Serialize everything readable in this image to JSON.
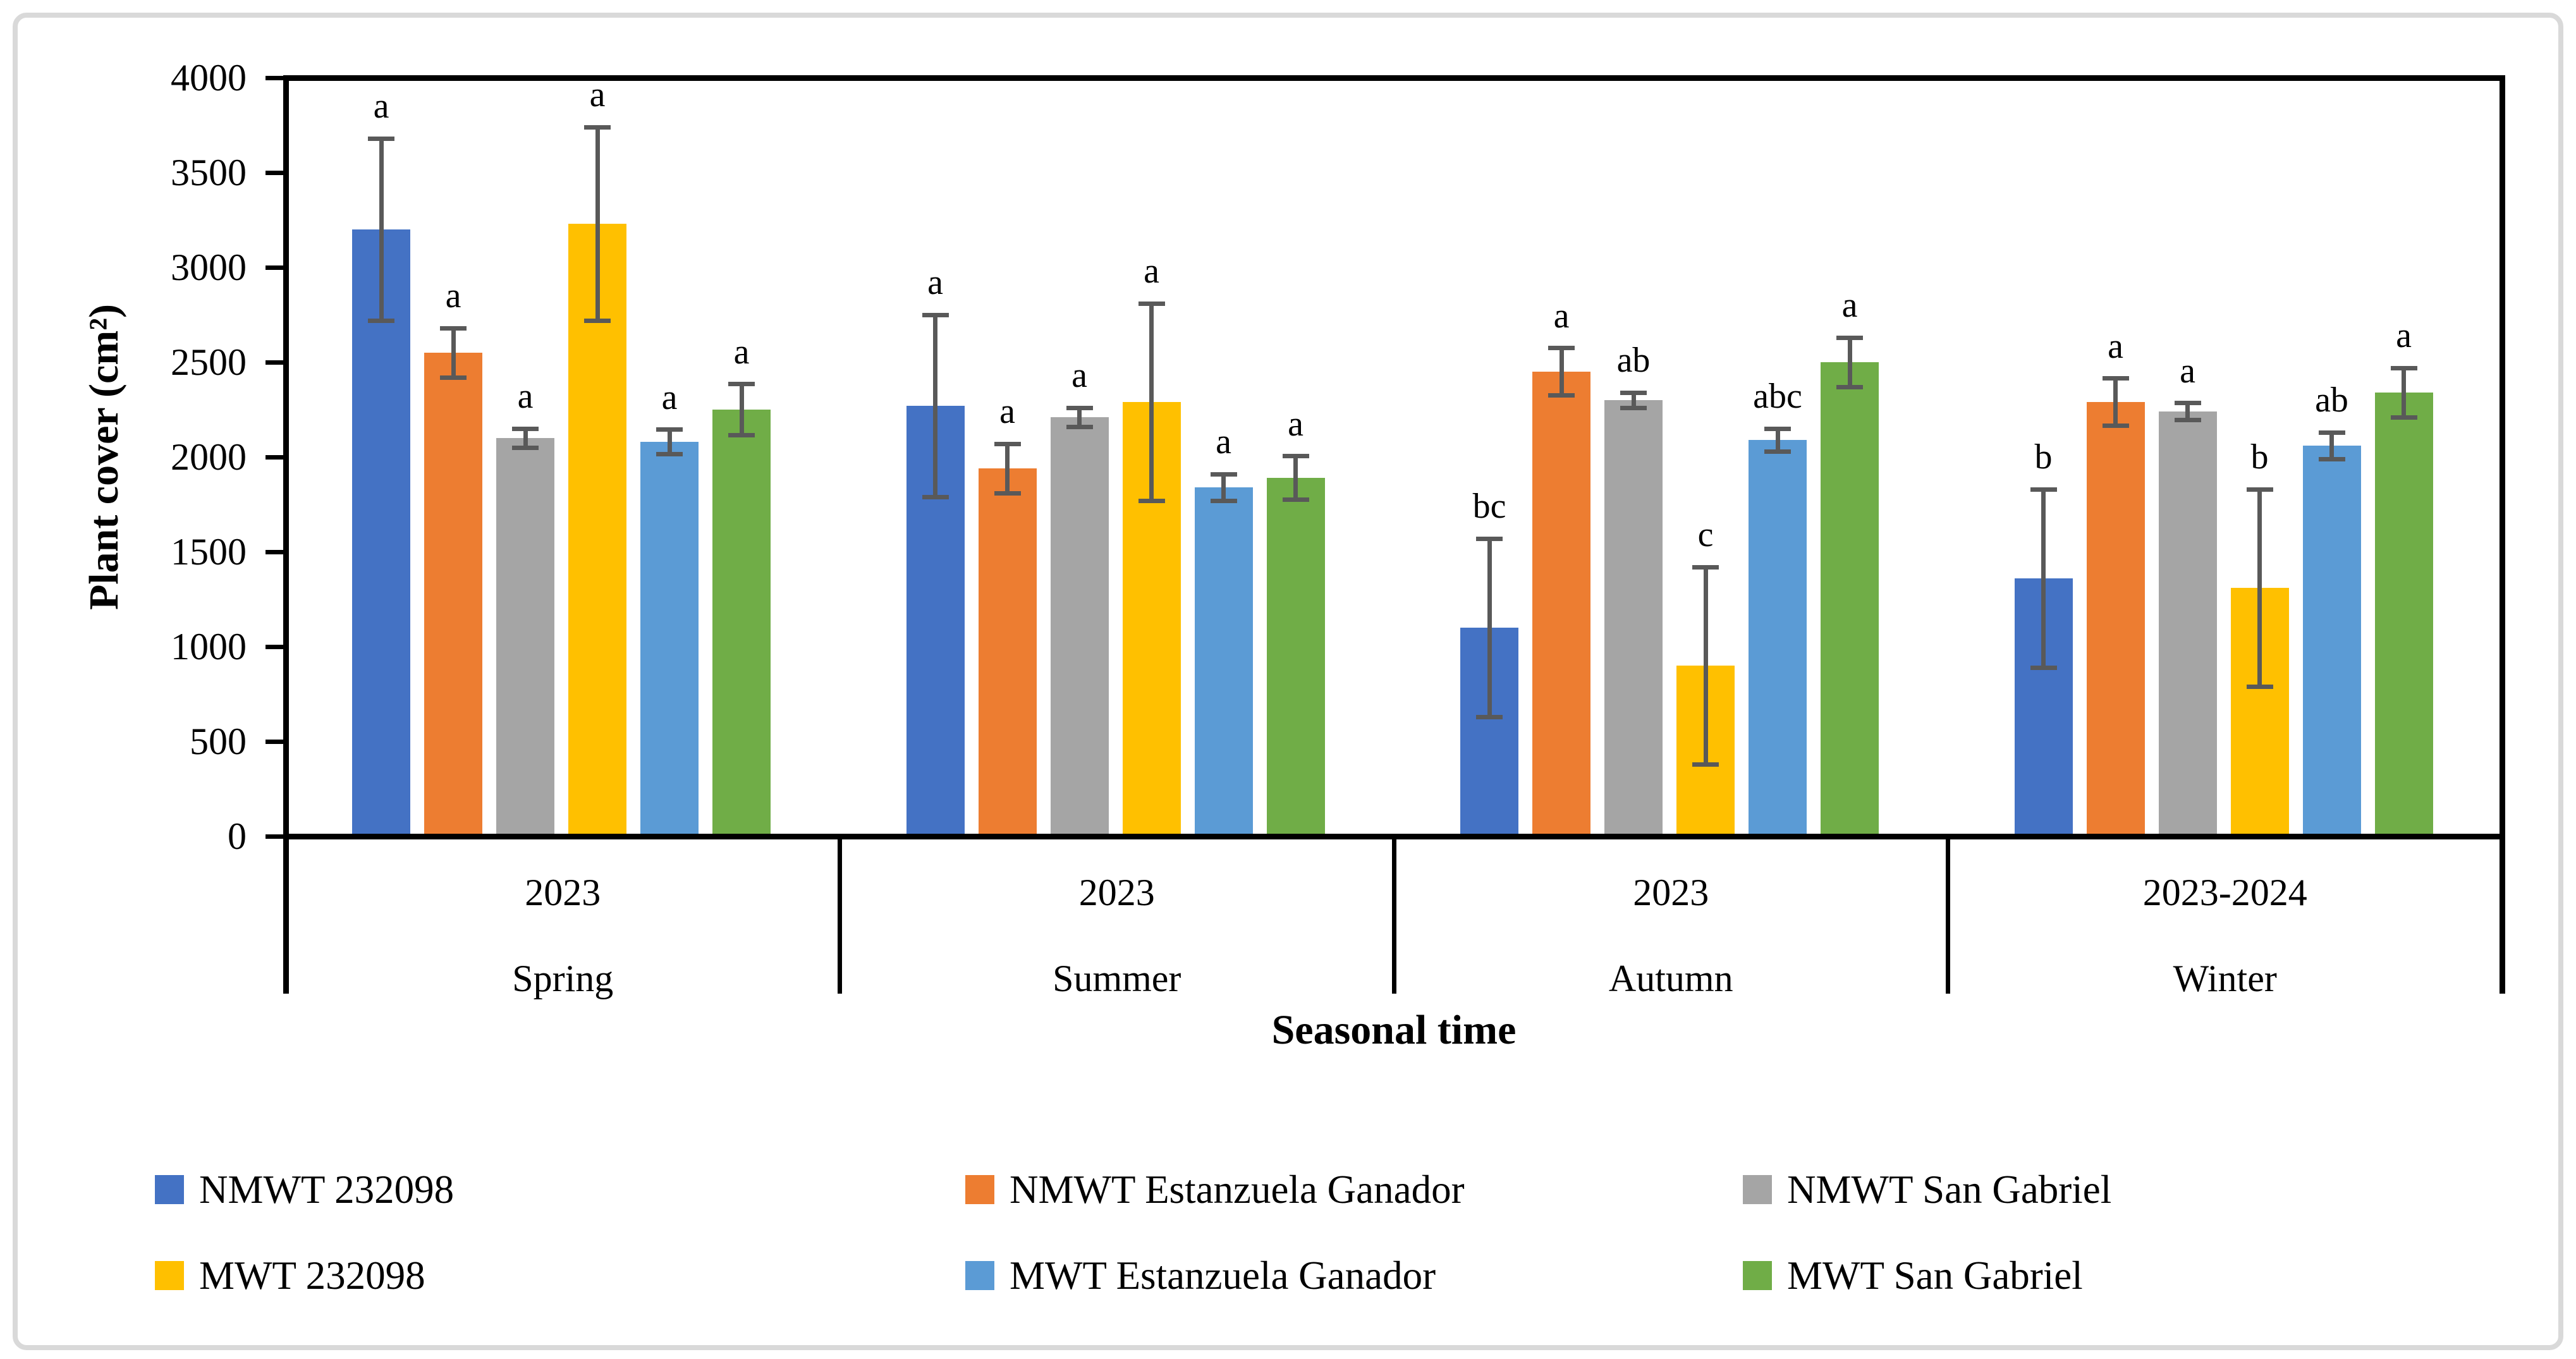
{
  "figure": {
    "background": "#FFFFFF",
    "border_color": "#D9D9D9"
  },
  "chart_data": {
    "type": "bar",
    "title": "",
    "xlabel": "Seasonal time",
    "ylabel": "Plant cover (cm²)",
    "ylim": [
      0,
      4000
    ],
    "yticks": [
      0,
      500,
      1000,
      1500,
      2000,
      2500,
      3000,
      3500,
      4000
    ],
    "grid": false,
    "legend_position": "bottom",
    "axis_color": "#000000",
    "error_bar_color": "#595959",
    "groups": [
      {
        "year": "2023",
        "season": "Spring"
      },
      {
        "year": "2023",
        "season": "Summer"
      },
      {
        "year": "2023",
        "season": "Autumn"
      },
      {
        "year": "2023-2024",
        "season": "Winter"
      }
    ],
    "series": [
      {
        "name": "NMWT 232098",
        "color": "#4472C4",
        "values": [
          3200,
          2270,
          1100,
          1360
        ],
        "errors": [
          480,
          480,
          470,
          470
        ],
        "letters": [
          "a",
          "a",
          "bc",
          "b"
        ]
      },
      {
        "name": "NMWT Estanzuela Ganador",
        "color": "#ED7D31",
        "values": [
          2550,
          1940,
          2450,
          2290
        ],
        "errors": [
          130,
          130,
          125,
          125
        ],
        "letters": [
          "a",
          "a",
          "a",
          "a"
        ]
      },
      {
        "name": "NMWT San Gabriel",
        "color": "#A5A5A5",
        "values": [
          2100,
          2210,
          2300,
          2240
        ],
        "errors": [
          50,
          50,
          40,
          45
        ],
        "letters": [
          "a",
          "a",
          "ab",
          "a"
        ]
      },
      {
        "name": "MWT 232098",
        "color": "#FFC000",
        "values": [
          3230,
          2290,
          900,
          1310
        ],
        "errors": [
          510,
          520,
          520,
          520
        ],
        "letters": [
          "a",
          "a",
          "c",
          "b"
        ]
      },
      {
        "name": "MWT Estanzuela Ganador",
        "color": "#5B9BD5",
        "values": [
          2080,
          1840,
          2090,
          2060
        ],
        "errors": [
          65,
          70,
          60,
          70
        ],
        "letters": [
          "a",
          "a",
          "abc",
          "ab"
        ]
      },
      {
        "name": "MWT San Gabriel",
        "color": "#70AD47",
        "values": [
          2250,
          1890,
          2500,
          2340
        ],
        "errors": [
          135,
          115,
          130,
          130
        ],
        "letters": [
          "a",
          "a",
          "a",
          "a"
        ]
      }
    ],
    "legend_rows": [
      [
        0,
        1,
        2
      ],
      [
        3,
        4,
        5
      ]
    ]
  }
}
